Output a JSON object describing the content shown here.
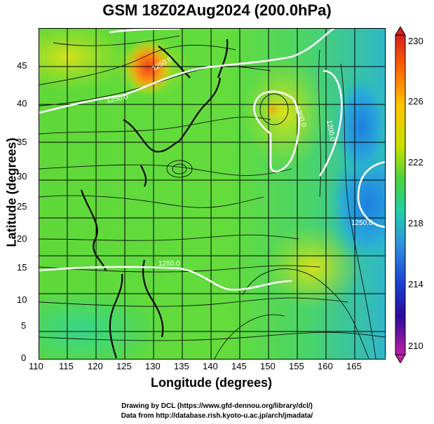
{
  "title": "GSM 18Z02Aug2024 (200.0hPa)",
  "x_axis": {
    "label": "Longitude (degrees)",
    "ticks": [
      "110",
      "115",
      "120",
      "125",
      "130",
      "135",
      "140",
      "145",
      "150",
      "155",
      "160",
      "165"
    ]
  },
  "y_axis": {
    "label": "Latitude  (degrees)",
    "ticks": [
      "0",
      "5",
      "10",
      "15",
      "20",
      "25",
      "30",
      "35",
      "40",
      "45"
    ]
  },
  "colorbar": {
    "labels": [
      "230",
      "226",
      "222",
      "218",
      "214",
      "210"
    ],
    "colors": [
      "#d61f1f",
      "#ff6a00",
      "#ffc400",
      "#c6e000",
      "#4ad23a",
      "#21d0a8",
      "#2f8fe0",
      "#1a3fd0",
      "#2a0a9a",
      "#c21ea6"
    ]
  },
  "contour_labels": [
    "1250.0",
    "1200.0",
    "1250.0",
    "1200.0",
    "1250.0",
    "1250.0"
  ],
  "credits": {
    "line1": "Drawing by DCL (https://www.gfd-dennou.org/library/dcl/)",
    "line2": "Data from http://database.rish.kyoto-u.ac.jp/arch/jmadata/"
  }
}
